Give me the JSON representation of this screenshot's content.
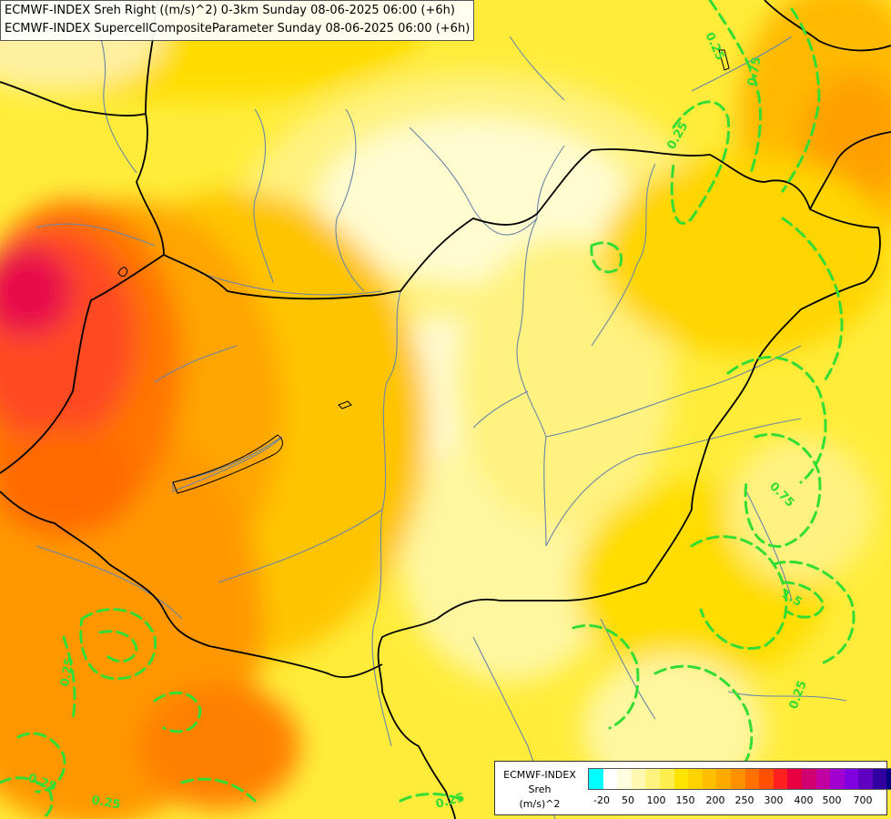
{
  "titles": [
    "ECMWF-INDEX Sreh Right ((m/s)^2) 0-3km Sunday 08-06-2025 06:00 (+6h)",
    "ECMWF-INDEX SupercellCompositeParameter Sunday 08-06-2025 06:00 (+6h)"
  ],
  "contour_labels": [
    "0.25",
    "0.75",
    "0.25",
    "0.25",
    "0.75",
    "1.5",
    "0.25",
    "0.25",
    "0.25",
    "0.25"
  ],
  "legend": {
    "line1": "ECMWF-INDEX",
    "line2": "Sreh",
    "line3": "(m/s)^2",
    "ticks": [
      "-20",
      "50",
      "100",
      "150",
      "200",
      "250",
      "300",
      "400",
      "500",
      "700"
    ],
    "colors": [
      "#00ffff",
      "#ffffff",
      "#fffde0",
      "#fff8b0",
      "#fff380",
      "#ffee50",
      "#ffe400",
      "#ffd200",
      "#ffbf00",
      "#ffaa00",
      "#ff9000",
      "#ff7000",
      "#ff5000",
      "#ff2020",
      "#e80040",
      "#d00070",
      "#c000a0",
      "#a000d0",
      "#8000e0",
      "#6000c0",
      "#3000a0",
      "#000080"
    ]
  },
  "colors": {
    "contour": "#33dd33",
    "border": "#000000",
    "river": "#6a86a6"
  }
}
